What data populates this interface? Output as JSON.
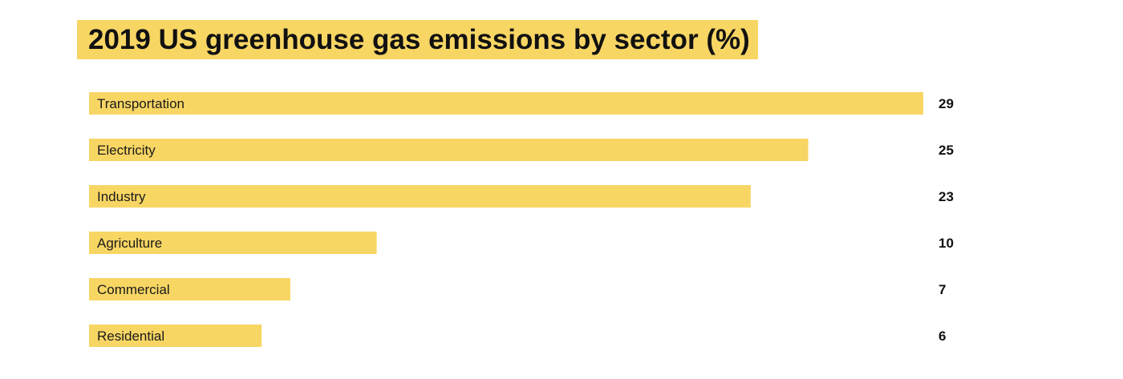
{
  "colors": {
    "bar": "#f8d664",
    "title_highlight": "#f8d664",
    "text": "#1a1a1a",
    "background": "#ffffff"
  },
  "chart_data": {
    "type": "bar",
    "orientation": "horizontal",
    "title": "2019 US greenhouse gas emissions by sector (%)",
    "categories": [
      "Transportation",
      "Electricity",
      "Industry",
      "Agriculture",
      "Commercial",
      "Residential"
    ],
    "values": [
      29,
      25,
      23,
      10,
      7,
      6
    ],
    "xlabel": "",
    "ylabel": "",
    "xlim": [
      0,
      29
    ],
    "grid": false,
    "legend": "none"
  }
}
